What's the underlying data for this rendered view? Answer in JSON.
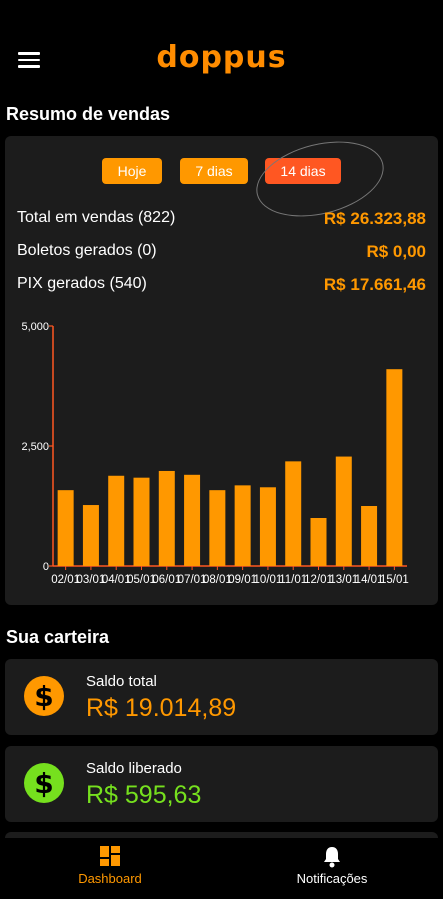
{
  "app": {
    "logo": "doppus"
  },
  "summary": {
    "title": "Resumo de vendas",
    "filters": [
      "Hoje",
      "7 dias",
      "14 dias"
    ],
    "active_filter": "14 dias",
    "stats": [
      {
        "label": "Total em vendas (822)",
        "value": "R$ 26.323,88"
      },
      {
        "label": "Boletos gerados (0)",
        "value": "R$ 0,00"
      },
      {
        "label": "PIX gerados (540)",
        "value": "R$ 17.661,46"
      }
    ]
  },
  "chart_data": {
    "type": "bar",
    "categories": [
      "02/01",
      "03/01",
      "04/01",
      "05/01",
      "06/01",
      "07/01",
      "08/01",
      "09/01",
      "10/01",
      "11/01",
      "12/01",
      "13/01",
      "14/01",
      "15/01"
    ],
    "values": [
      1580,
      1270,
      1880,
      1840,
      1980,
      1900,
      1580,
      1680,
      1640,
      2180,
      1000,
      2280,
      1250,
      4100
    ],
    "ylim": [
      0,
      5000
    ],
    "yticks": [
      "0",
      "2,500",
      "5,000"
    ],
    "title": "",
    "xlabel": "",
    "ylabel": "",
    "bar_color": "#ff9800",
    "axis_color": "#ff5722"
  },
  "wallet": {
    "title": "Sua carteira",
    "cards": [
      {
        "label": "Saldo total",
        "value": "R$ 19.014,89",
        "icon": "dollar-coin-icon",
        "color": "#ff9800"
      },
      {
        "label": "Saldo liberado",
        "value": "R$ 595,63",
        "icon": "dollar-coin-icon",
        "color": "#76e01e"
      }
    ]
  },
  "nav": {
    "items": [
      {
        "label": "Dashboard",
        "icon": "dashboard-icon",
        "active": true
      },
      {
        "label": "Notificações",
        "icon": "bell-icon",
        "active": false
      }
    ]
  },
  "colors": {
    "accent": "#ff9800",
    "active_filter": "#ff5722",
    "card_bg": "#1c1c1c",
    "green": "#76e01e"
  }
}
